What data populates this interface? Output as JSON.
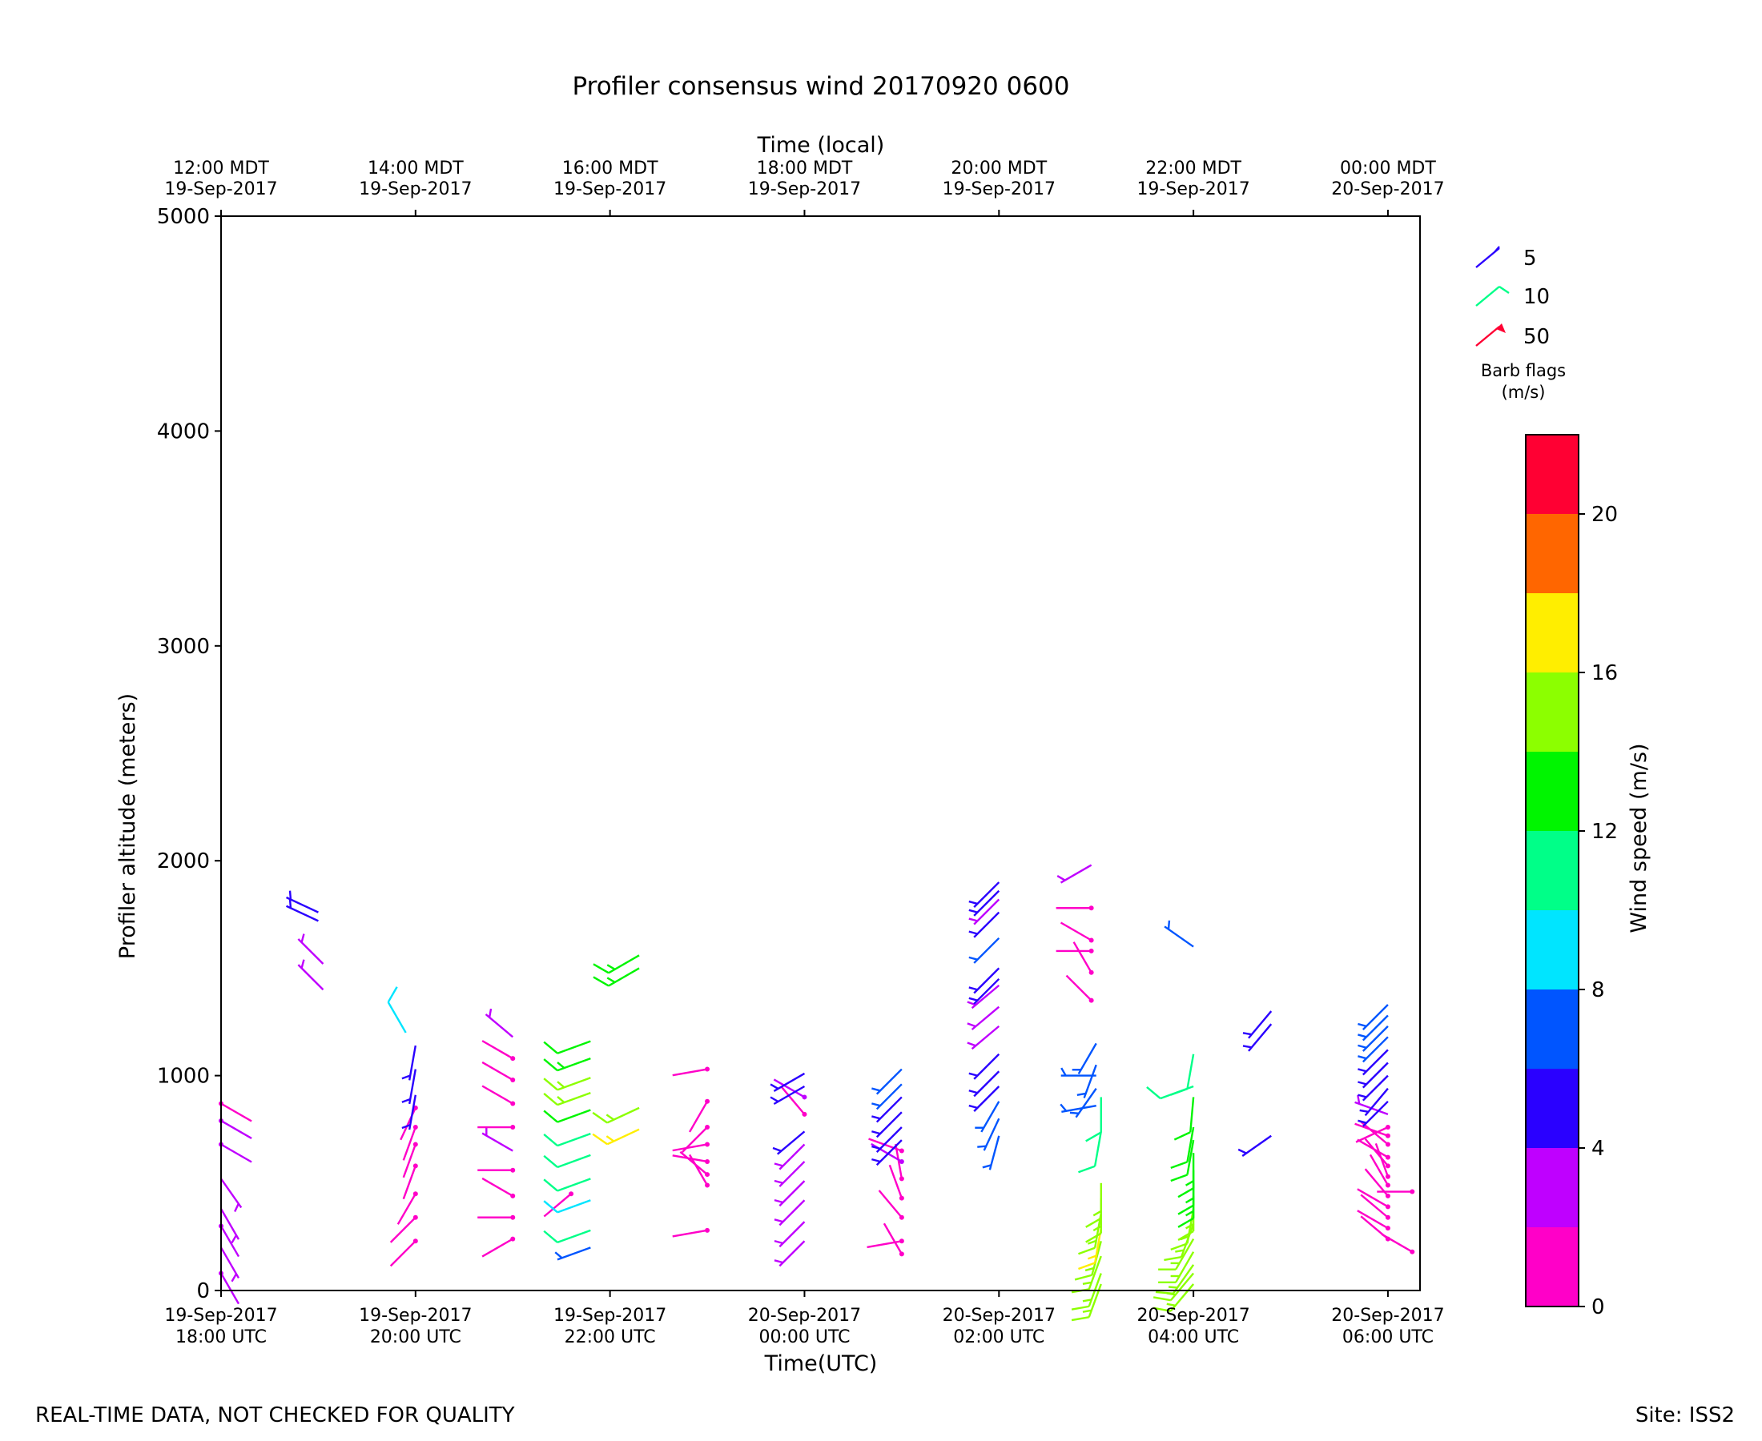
{
  "chart_data": {
    "type": "scatter",
    "title": "Profiler consensus wind 20170920 0600",
    "xlabel": "Time(UTC)",
    "x2label": "Time (local)",
    "ylabel": "Profiler altitude (meters)",
    "ylim": [
      0,
      5000
    ],
    "yticks": [
      0,
      1000,
      2000,
      3000,
      4000,
      5000
    ],
    "xlim_hours": [
      18.0,
      30.33
    ],
    "xticks": [
      {
        "h": 18,
        "date": "19-Sep-2017",
        "time": "18:00 UTC"
      },
      {
        "h": 20,
        "date": "19-Sep-2017",
        "time": "20:00 UTC"
      },
      {
        "h": 22,
        "date": "19-Sep-2017",
        "time": "22:00 UTC"
      },
      {
        "h": 24,
        "date": "20-Sep-2017",
        "time": "00:00 UTC"
      },
      {
        "h": 26,
        "date": "20-Sep-2017",
        "time": "02:00 UTC"
      },
      {
        "h": 28,
        "date": "20-Sep-2017",
        "time": "04:00 UTC"
      },
      {
        "h": 30,
        "date": "20-Sep-2017",
        "time": "06:00 UTC"
      }
    ],
    "x2ticks": [
      {
        "h": 18,
        "time": "12:00 MDT",
        "date": "19-Sep-2017"
      },
      {
        "h": 20,
        "time": "14:00 MDT",
        "date": "19-Sep-2017"
      },
      {
        "h": 22,
        "time": "16:00 MDT",
        "date": "19-Sep-2017"
      },
      {
        "h": 24,
        "time": "18:00 MDT",
        "date": "19-Sep-2017"
      },
      {
        "h": 26,
        "time": "20:00 MDT",
        "date": "19-Sep-2017"
      },
      {
        "h": 28,
        "time": "22:00 MDT",
        "date": "19-Sep-2017"
      },
      {
        "h": 30,
        "time": "00:00 MDT",
        "date": "20-Sep-2017"
      }
    ],
    "colorbar": {
      "label": "Wind speed (m/s)",
      "bounds": [
        0,
        2,
        4,
        6,
        8,
        10,
        12,
        14,
        16,
        18,
        20,
        22
      ],
      "tick_labels": [
        "0",
        "4",
        "8",
        "12",
        "16",
        "20"
      ],
      "tick_values": [
        0,
        4,
        8,
        12,
        16,
        20
      ],
      "colors": [
        "#ff00c8",
        "#bf00ff",
        "#2a00ff",
        "#0055ff",
        "#00e5ff",
        "#00ff88",
        "#00f500",
        "#8cff00",
        "#ffee00",
        "#ff6600",
        "#ff0033"
      ]
    },
    "barb_legend": {
      "title": "Barb flags",
      "units": "(m/s)",
      "entries": [
        {
          "label": "5",
          "color": "#2a00ff"
        },
        {
          "label": "10",
          "color": "#00ff88"
        },
        {
          "label": "50",
          "color": "#ff0033"
        }
      ]
    },
    "profiles": [
      {
        "h": 18.0,
        "points": [
          [
            80,
            2,
            150
          ],
          [
            200,
            3,
            150
          ],
          [
            300,
            2,
            150
          ],
          [
            380,
            3,
            150
          ],
          [
            520,
            3,
            145
          ],
          [
            680,
            2,
            120
          ],
          [
            790,
            2,
            120
          ],
          [
            870,
            1,
            120
          ]
        ]
      },
      {
        "h": 19.0,
        "points": [
          [
            1720,
            4,
            295
          ],
          [
            1760,
            5,
            295
          ]
        ]
      },
      {
        "h": 19.05,
        "points": [
          [
            1400,
            3,
            315
          ],
          [
            1520,
            3,
            315
          ]
        ]
      },
      {
        "h": 20.0,
        "points": [
          [
            230,
            1,
            225
          ],
          [
            340,
            1,
            225
          ],
          [
            450,
            1,
            210
          ],
          [
            580,
            1,
            200
          ],
          [
            680,
            1,
            200
          ],
          [
            760,
            1,
            200
          ],
          [
            850,
            1,
            205
          ],
          [
            910,
            4,
            190
          ],
          [
            1030,
            4,
            190
          ],
          [
            1140,
            4,
            190
          ]
        ]
      },
      {
        "h": 21.0,
        "points": [
          [
            240,
            1,
            240
          ],
          [
            340,
            1,
            270
          ],
          [
            440,
            1,
            300
          ],
          [
            560,
            1,
            270
          ],
          [
            650,
            3,
            300
          ],
          [
            760,
            1,
            270
          ],
          [
            870,
            1,
            300
          ],
          [
            980,
            1,
            300
          ],
          [
            1080,
            1,
            300
          ],
          [
            1180,
            3,
            310
          ]
        ]
      },
      {
        "h": 19.9,
        "points": [
          [
            1200,
            9,
            330
          ]
        ]
      },
      {
        "h": 21.6,
        "points": [
          [
            450,
            1,
            230
          ]
        ]
      },
      {
        "h": 21.8,
        "points": [
          [
            200,
            7,
            250
          ],
          [
            280,
            10,
            250
          ],
          [
            420,
            9,
            250
          ],
          [
            520,
            11,
            250
          ],
          [
            630,
            11,
            250
          ],
          [
            730,
            11,
            250
          ],
          [
            840,
            12,
            250
          ],
          [
            920,
            14,
            250
          ],
          [
            990,
            14,
            250
          ],
          [
            1080,
            13,
            250
          ],
          [
            1160,
            12,
            250
          ]
        ]
      },
      {
        "h": 22.3,
        "points": [
          [
            750,
            16,
            245
          ],
          [
            850,
            14,
            245
          ],
          [
            1500,
            13,
            240
          ],
          [
            1560,
            13,
            240
          ]
        ]
      },
      {
        "h": 23.0,
        "points": [
          [
            280,
            1,
            260
          ],
          [
            490,
            1,
            330
          ],
          [
            540,
            1,
            310
          ],
          [
            600,
            1,
            280
          ],
          [
            680,
            1,
            260
          ],
          [
            760,
            1,
            225
          ],
          [
            880,
            1,
            210
          ],
          [
            1030,
            1,
            260
          ]
        ]
      },
      {
        "h": 24.0,
        "points": [
          [
            230,
            3,
            225
          ],
          [
            320,
            3,
            225
          ],
          [
            420,
            3,
            225
          ],
          [
            510,
            3,
            225
          ],
          [
            600,
            3,
            225
          ],
          [
            680,
            3,
            225
          ],
          [
            740,
            4,
            230
          ],
          [
            820,
            1,
            320
          ],
          [
            900,
            2,
            300
          ],
          [
            950,
            4,
            240
          ],
          [
            1010,
            4,
            240
          ]
        ]
      },
      {
        "h": 25.0,
        "points": [
          [
            170,
            1,
            330
          ],
          [
            230,
            1,
            260
          ],
          [
            340,
            1,
            320
          ],
          [
            430,
            1,
            340
          ],
          [
            520,
            1,
            350
          ],
          [
            600,
            2,
            300
          ],
          [
            650,
            1,
            290
          ],
          [
            700,
            4,
            225
          ],
          [
            760,
            4,
            225
          ],
          [
            830,
            4,
            225
          ],
          [
            900,
            4,
            225
          ],
          [
            960,
            6,
            225
          ],
          [
            1030,
            6,
            225
          ]
        ]
      },
      {
        "h": 26.0,
        "points": [
          [
            720,
            6,
            195
          ],
          [
            800,
            6,
            205
          ],
          [
            880,
            6,
            210
          ],
          [
            950,
            4,
            225
          ],
          [
            1020,
            4,
            225
          ],
          [
            1100,
            4,
            225
          ],
          [
            1230,
            3,
            230
          ],
          [
            1320,
            3,
            230
          ],
          [
            1420,
            3,
            230
          ],
          [
            1450,
            4,
            225
          ],
          [
            1500,
            4,
            225
          ],
          [
            1640,
            6,
            225
          ],
          [
            1760,
            4,
            225
          ],
          [
            1820,
            3,
            225
          ],
          [
            1860,
            4,
            225
          ],
          [
            1900,
            4,
            225
          ]
        ]
      },
      {
        "h": 27.0,
        "points": [
          [
            860,
            6,
            260
          ],
          [
            1000,
            6,
            270
          ],
          [
            940,
            6,
            215
          ],
          [
            1050,
            6,
            200
          ],
          [
            1150,
            6,
            210
          ]
        ]
      },
      {
        "h": 26.95,
        "points": [
          [
            1350,
            1,
            315
          ],
          [
            1480,
            1,
            330
          ],
          [
            1580,
            1,
            270
          ],
          [
            1630,
            1,
            300
          ],
          [
            1780,
            1,
            270
          ],
          [
            1980,
            3,
            240
          ]
        ]
      },
      {
        "h": 27.05,
        "points": [
          [
            30,
            14,
            200
          ],
          [
            80,
            15,
            200
          ],
          [
            160,
            15,
            200
          ],
          [
            230,
            15,
            195
          ],
          [
            290,
            16,
            190
          ],
          [
            360,
            15,
            190
          ],
          [
            430,
            15,
            180
          ],
          [
            500,
            15,
            180
          ],
          [
            740,
            11,
            190
          ],
          [
            900,
            11,
            180
          ]
        ]
      },
      {
        "h": 28.0,
        "points": [
          [
            30,
            14,
            220
          ],
          [
            80,
            14,
            220
          ],
          [
            120,
            14,
            215
          ],
          [
            180,
            14,
            210
          ],
          [
            240,
            14,
            210
          ],
          [
            310,
            15,
            200
          ],
          [
            380,
            15,
            190
          ],
          [
            440,
            14,
            180
          ],
          [
            500,
            13,
            180
          ],
          [
            560,
            13,
            180
          ],
          [
            640,
            13,
            180
          ],
          [
            700,
            12,
            190
          ],
          [
            760,
            12,
            190
          ],
          [
            900,
            12,
            185
          ],
          [
            950,
            11,
            250
          ],
          [
            1100,
            11,
            190
          ],
          [
            1600,
            6,
            305
          ]
        ]
      },
      {
        "h": 28.8,
        "points": [
          [
            720,
            4,
            235
          ],
          [
            1240,
            4,
            220
          ],
          [
            1300,
            4,
            220
          ]
        ]
      },
      {
        "h": 30.0,
        "points": [
          [
            240,
            1,
            310
          ],
          [
            290,
            1,
            300
          ],
          [
            340,
            1,
            310
          ],
          [
            390,
            1,
            300
          ],
          [
            440,
            1,
            320
          ],
          [
            490,
            1,
            330
          ],
          [
            530,
            1,
            340
          ],
          [
            580,
            1,
            320
          ],
          [
            620,
            1,
            300
          ],
          [
            680,
            1,
            310
          ],
          [
            720,
            1,
            290
          ],
          [
            760,
            1,
            245
          ],
          [
            820,
            3,
            290
          ],
          [
            880,
            4,
            225
          ],
          [
            940,
            4,
            220
          ],
          [
            1000,
            4,
            225
          ],
          [
            1060,
            4,
            225
          ],
          [
            1120,
            4,
            225
          ],
          [
            1180,
            6,
            225
          ],
          [
            1230,
            6,
            225
          ],
          [
            1280,
            6,
            225
          ],
          [
            1330,
            6,
            225
          ]
        ]
      },
      {
        "h": 30.25,
        "points": [
          [
            180,
            1,
            300
          ],
          [
            460,
            1,
            270
          ]
        ]
      }
    ]
  },
  "footer": {
    "disclaimer": "REAL-TIME DATA, NOT CHECKED FOR QUALITY",
    "site": "Site: ISS2"
  }
}
